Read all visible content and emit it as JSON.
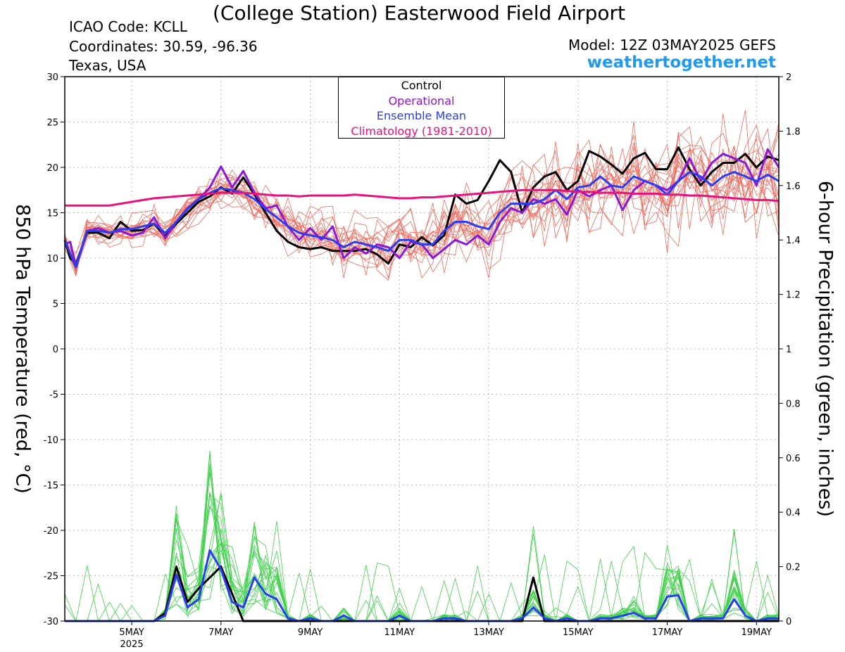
{
  "header": {
    "title": "(College Station) Easterwood Field Airport",
    "icao": "ICAO Code: KCLL",
    "coordinates": "Coordinates: 30.59, -96.36",
    "region": "Texas, USA",
    "model": "Model: 12Z 03MAY2025 GEFS",
    "site": "weathertogether.net",
    "site_color": "#1e9bef"
  },
  "chart_data": {
    "type": "line",
    "ylabel_left": "850 hPa Temperature (red, °C)",
    "ylabel_right": "6-hour Precipitation (green, inches)",
    "x_tick_labels": [
      {
        "day": 5,
        "label": "5MAY",
        "sub": "2025"
      },
      {
        "day": 7,
        "label": "7MAY"
      },
      {
        "day": 9,
        "label": "9MAY"
      },
      {
        "day": 11,
        "label": "11MAY"
      },
      {
        "day": 13,
        "label": "13MAY"
      },
      {
        "day": 15,
        "label": "15MAY"
      },
      {
        "day": 17,
        "label": "17MAY"
      },
      {
        "day": 19,
        "label": "19MAY"
      }
    ],
    "xlim_days_may": [
      3.5,
      19.5
    ],
    "ylim_left": [
      -30,
      30
    ],
    "yticks_left": [
      -30,
      -25,
      -20,
      -15,
      -10,
      -5,
      0,
      5,
      10,
      15,
      20,
      25,
      30
    ],
    "ylim_right": [
      0,
      2
    ],
    "yticks_right": [
      "0",
      "0.2",
      "0.4",
      "0.6",
      "0.8",
      "1",
      "1.2",
      "1.4",
      "1.6",
      "1.8",
      "2"
    ],
    "grid": true,
    "legend": {
      "placement": "top-center",
      "entries": [
        {
          "label": "Control",
          "color": "#000000"
        },
        {
          "label": "Operational",
          "color": "#8a18d6"
        },
        {
          "label": "Ensemble Mean",
          "color": "#2a3df0"
        },
        {
          "label": "Climatology (1981-2010)",
          "color": "#e8127e"
        }
      ]
    },
    "colors": {
      "members_temp": "#f06a5c",
      "members_precip": "#3fd24a",
      "control": "#000000",
      "operational": "#8a18d6",
      "mean": "#2a3df0",
      "climatology": "#e8127e"
    },
    "temperature_series": {
      "x_days_may": [
        3.5,
        3.62,
        3.75,
        4.0,
        4.25,
        4.5,
        4.75,
        5.0,
        5.25,
        5.5,
        5.75,
        6.0,
        6.25,
        6.5,
        6.75,
        7.0,
        7.25,
        7.5,
        7.75,
        8.0,
        8.25,
        8.5,
        8.75,
        9.0,
        9.25,
        9.5,
        9.75,
        10.0,
        10.25,
        10.5,
        10.75,
        11.0,
        11.25,
        11.5,
        11.75,
        12.0,
        12.25,
        12.5,
        12.75,
        13.0,
        13.25,
        13.5,
        13.75,
        14.0,
        14.25,
        14.5,
        14.75,
        15.0,
        15.25,
        15.5,
        15.75,
        16.0,
        16.25,
        16.5,
        16.75,
        17.0,
        17.25,
        17.5,
        17.75,
        18.0,
        18.25,
        18.5,
        18.75,
        19.0,
        19.25,
        19.5
      ],
      "series": [
        {
          "name": "Control",
          "values": [
            12.0,
            10.0,
            9.4,
            12.8,
            12.8,
            12.2,
            14.0,
            13.0,
            13.1,
            13.8,
            12.4,
            13.8,
            15.0,
            16.2,
            16.8,
            17.8,
            17.1,
            18.9,
            17.0,
            15.0,
            13.0,
            11.8,
            11.2,
            11.0,
            11.2,
            10.8,
            10.8,
            10.8,
            11.0,
            10.4,
            9.4,
            11.5,
            11.2,
            12.3,
            11.4,
            12.5,
            17.0,
            16.0,
            16.4,
            18.5,
            20.8,
            19.5,
            15.0,
            17.8,
            19.0,
            19.5,
            17.5,
            18.5,
            21.8,
            21.2,
            20.3,
            19.3,
            21.0,
            21.6,
            19.8,
            19.8,
            22.2,
            19.8,
            18.0,
            19.5,
            20.5,
            20.5,
            21.5,
            20.0,
            21.2,
            20.8
          ]
        },
        {
          "name": "Operational",
          "values": [
            11.5,
            11.8,
            9.2,
            13.0,
            13.3,
            12.8,
            13.0,
            12.5,
            12.8,
            14.5,
            12.2,
            14.0,
            15.5,
            16.5,
            17.8,
            20.1,
            17.8,
            19.6,
            17.2,
            15.5,
            15.8,
            13.5,
            12.0,
            13.3,
            12.0,
            13.5,
            10.0,
            11.2,
            10.5,
            11.5,
            11.2,
            10.0,
            11.8,
            11.5,
            10.0,
            11.0,
            12.0,
            11.5,
            12.5,
            11.5,
            14.0,
            15.5,
            15.0,
            16.5,
            16.0,
            16.5,
            14.8,
            17.5,
            16.8,
            17.5,
            18.0,
            15.3,
            17.5,
            18.5,
            18.0,
            17.5,
            18.5,
            21.0,
            18.5,
            20.5,
            21.5,
            21.0,
            20.5,
            18.0,
            22.0,
            20.0
          ]
        },
        {
          "name": "Ensemble Mean",
          "values": [
            12.0,
            10.5,
            9.0,
            13.0,
            13.0,
            12.8,
            13.2,
            13.2,
            13.5,
            13.8,
            12.8,
            14.0,
            15.4,
            16.5,
            17.2,
            17.7,
            17.5,
            17.2,
            16.5,
            15.4,
            14.5,
            13.5,
            12.8,
            12.5,
            12.3,
            12.0,
            11.2,
            11.8,
            11.5,
            11.2,
            10.8,
            12.0,
            12.0,
            11.5,
            11.5,
            13.0,
            14.0,
            14.0,
            13.5,
            13.2,
            15.0,
            16.0,
            16.0,
            16.0,
            16.5,
            17.5,
            16.5,
            17.8,
            18.0,
            19.0,
            18.0,
            17.8,
            19.0,
            18.5,
            18.0,
            17.0,
            18.5,
            19.5,
            19.0,
            18.0,
            19.0,
            19.5,
            19.0,
            18.5,
            19.2,
            18.5
          ]
        },
        {
          "name": "Climatology (1981-2010)",
          "values": [
            15.8,
            15.8,
            15.8,
            15.8,
            15.8,
            15.8,
            16.0,
            16.2,
            16.4,
            16.6,
            16.7,
            16.8,
            16.9,
            17.0,
            17.1,
            17.2,
            17.2,
            17.2,
            17.1,
            17.0,
            16.9,
            16.9,
            16.8,
            16.9,
            16.9,
            16.9,
            16.9,
            17.0,
            16.9,
            16.8,
            16.7,
            16.6,
            16.6,
            16.7,
            16.7,
            16.8,
            16.9,
            17.0,
            17.1,
            17.2,
            17.3,
            17.4,
            17.5,
            17.5,
            17.5,
            17.5,
            17.4,
            17.3,
            17.3,
            17.2,
            17.2,
            17.2,
            17.1,
            17.1,
            17.1,
            17.0,
            17.0,
            16.9,
            16.9,
            16.8,
            16.7,
            16.6,
            16.5,
            16.4,
            16.4,
            16.3
          ]
        }
      ]
    },
    "precipitation_series": {
      "x_days_may": [
        3.5,
        3.75,
        4.0,
        4.25,
        4.5,
        4.75,
        5.0,
        5.25,
        5.5,
        5.75,
        6.0,
        6.25,
        6.5,
        6.75,
        7.0,
        7.25,
        7.5,
        7.75,
        8.0,
        8.25,
        8.5,
        8.75,
        9.0,
        9.25,
        9.5,
        9.75,
        10.0,
        10.25,
        10.5,
        10.75,
        11.0,
        11.25,
        11.5,
        11.75,
        12.0,
        12.25,
        12.5,
        12.75,
        13.0,
        13.25,
        13.5,
        13.75,
        14.0,
        14.25,
        14.5,
        14.75,
        15.0,
        15.25,
        15.5,
        15.75,
        16.0,
        16.25,
        16.5,
        16.75,
        17.0,
        17.25,
        17.5,
        17.75,
        18.0,
        18.25,
        18.5,
        18.75,
        19.0,
        19.25,
        19.5
      ],
      "series": [
        {
          "name": "Control",
          "values": [
            0,
            0,
            0,
            0,
            0,
            0,
            0,
            0,
            0,
            0.03,
            0.2,
            0.07,
            0.12,
            0.16,
            0.2,
            0.1,
            0,
            0,
            0,
            0,
            0,
            0,
            0,
            0,
            0,
            0,
            0,
            0,
            0,
            0,
            0,
            0,
            0,
            0,
            0,
            0,
            0,
            0,
            0,
            0,
            0,
            0,
            0.16,
            0,
            0,
            0,
            0,
            0,
            0,
            0,
            0,
            0,
            0,
            0,
            0,
            0,
            0,
            0,
            0,
            0,
            0,
            0,
            0,
            0,
            0
          ]
        },
        {
          "name": "Ensemble Mean",
          "values": [
            0,
            0,
            0,
            0,
            0,
            0,
            0,
            0,
            0,
            0.02,
            0.17,
            0.05,
            0.08,
            0.26,
            0.19,
            0.07,
            0.05,
            0.16,
            0.1,
            0.08,
            0.01,
            0,
            0.01,
            0,
            0,
            0.02,
            0,
            0,
            0,
            0,
            0.02,
            0,
            0,
            0,
            0.01,
            0.01,
            0,
            0,
            0,
            0,
            0,
            0.01,
            0.05,
            0.01,
            0,
            0.01,
            0,
            0,
            0.01,
            0.01,
            0.02,
            0.03,
            0.01,
            0.01,
            0.09,
            0.095,
            0,
            0.01,
            0.01,
            0.01,
            0.08,
            0.02,
            0,
            0.01,
            0.01
          ]
        }
      ]
    }
  }
}
